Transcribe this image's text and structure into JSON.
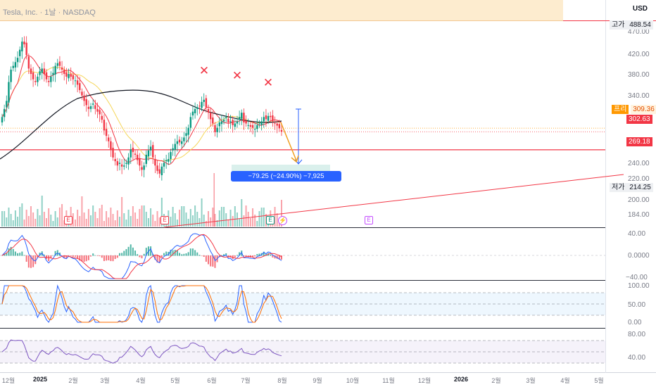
{
  "header": {
    "title": "Tesla, Inc. · 1날 · NASDAQ",
    "currency": "USD"
  },
  "price_labels": {
    "high": {
      "tag": "고가",
      "value": "488.54"
    },
    "pre": {
      "tag": "프리",
      "value": "309.36"
    },
    "last": {
      "value": "302.63"
    },
    "level": {
      "value": "269.18"
    },
    "low": {
      "tag": "저가",
      "value": "214.25"
    }
  },
  "price_axis": [
    "470.00",
    "420.00",
    "380.00",
    "340.00",
    "240.00",
    "220.00",
    "200.00",
    "184.00"
  ],
  "macd_axis": [
    "40.00",
    "0.0000",
    "−40.00"
  ],
  "stoch_axis": [
    "100.00",
    "50.00",
    "0.00"
  ],
  "rsi_axis": [
    "80.00",
    "40.00"
  ],
  "time_axis": [
    {
      "label": "12월",
      "year": false
    },
    {
      "label": "2025",
      "year": true
    },
    {
      "label": "2월",
      "year": false
    },
    {
      "label": "3월",
      "year": false
    },
    {
      "label": "4월",
      "year": false
    },
    {
      "label": "5월",
      "year": false
    },
    {
      "label": "6월",
      "year": false
    },
    {
      "label": "7월",
      "year": false
    },
    {
      "label": "8월",
      "year": false
    },
    {
      "label": "9월",
      "year": false
    },
    {
      "label": "10월",
      "year": false
    },
    {
      "label": "11월",
      "year": false
    },
    {
      "label": "12월",
      "year": false
    },
    {
      "label": "2026",
      "year": true
    },
    {
      "label": "2월",
      "year": false
    },
    {
      "label": "3월",
      "year": false
    },
    {
      "label": "4월",
      "year": false
    },
    {
      "label": "5월",
      "year": false
    }
  ],
  "measure_tool": {
    "label": "−79.25 (−24.90%) −7,925"
  },
  "earnings_badges": [
    {
      "label": "E",
      "color": "red"
    },
    {
      "label": "E",
      "color": "red"
    },
    {
      "label": "E",
      "color": "green"
    },
    {
      "label": "E",
      "color": "purple"
    }
  ],
  "pattern_marks": [
    "✕",
    "✕",
    "✕"
  ],
  "colors": {
    "up": "#089981",
    "down": "#f23645",
    "ma_short": "#f23645",
    "ma_mid": "#f5d659",
    "ma_long": "#131722",
    "accent": "#2962ff",
    "target_arrow": "#f0a020",
    "premarket": "#ff9800"
  },
  "chart_data": {
    "type": "candlestick",
    "symbol": "Tesla, Inc.",
    "interval": "1날",
    "exchange": "NASDAQ",
    "high": 488.54,
    "low": 214.25,
    "last": 302.63,
    "premarket": 309.36,
    "support_level": 269.18,
    "measured_move": {
      "change": -79.25,
      "percent": -24.9,
      "ticks": -7925
    },
    "close": [
      330,
      345,
      360,
      395,
      418,
      425,
      432,
      440,
      455,
      470,
      465,
      445,
      420,
      410,
      400,
      395,
      405,
      415,
      420,
      410,
      400,
      395,
      405,
      412,
      425,
      430,
      425,
      418,
      410,
      405,
      410,
      405,
      400,
      398,
      390,
      380,
      370,
      360,
      352,
      345,
      350,
      355,
      345,
      340,
      335,
      325,
      305,
      295,
      285,
      270,
      255,
      248,
      240,
      245,
      238,
      240,
      245,
      255,
      270,
      265,
      260,
      250,
      240,
      232,
      240,
      260,
      268,
      275,
      255,
      240,
      230,
      225,
      238,
      245,
      250,
      252,
      265,
      272,
      280,
      285,
      283,
      285,
      292,
      300,
      310,
      330,
      340,
      345,
      348,
      350,
      358,
      362,
      348,
      338,
      326,
      318,
      302,
      310,
      320,
      322,
      325,
      330,
      320,
      322,
      315,
      318,
      322,
      330,
      338,
      320,
      318,
      315,
      312,
      310,
      308,
      315,
      318,
      322,
      330,
      326,
      332,
      330,
      322,
      318,
      314,
      309,
      303
    ],
    "ylim": [
      184,
      500
    ]
  }
}
